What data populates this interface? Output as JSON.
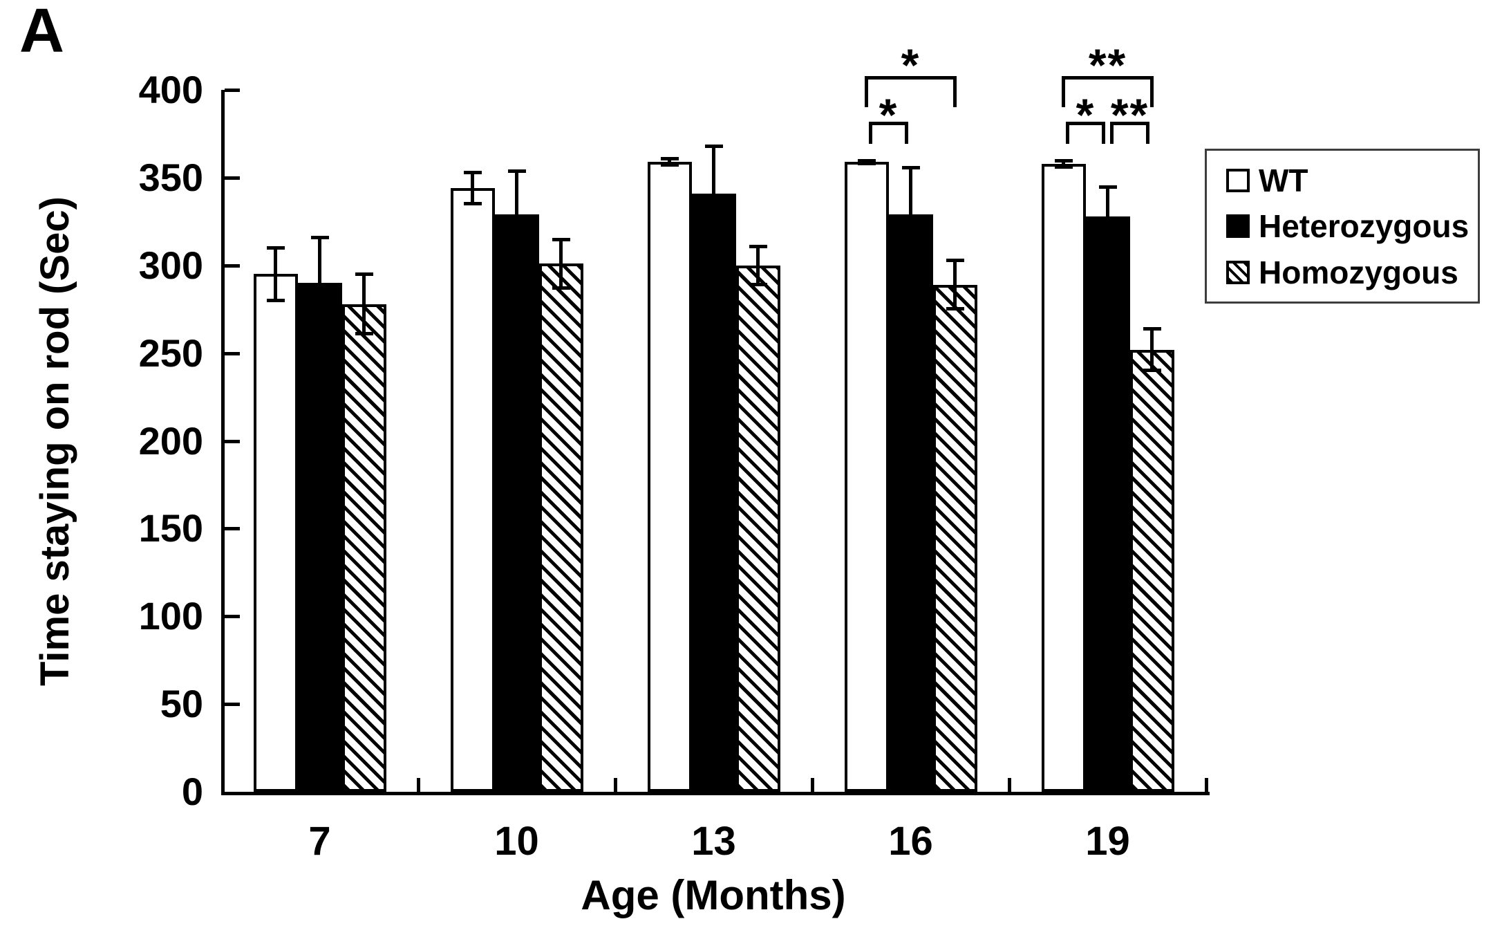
{
  "panel_label": "A",
  "colors": {
    "ink": "#000000",
    "background": "#ffffff",
    "legend_border": "#3d3d3d",
    "bar_open_fill": "#ffffff",
    "bar_solid_fill": "#000000"
  },
  "chart_data": {
    "type": "bar",
    "title": "",
    "xlabel": "Age (Months)",
    "ylabel": "Time staying on rod (Sec)",
    "ylim": [
      0,
      400
    ],
    "yticks": [
      0,
      50,
      100,
      150,
      200,
      250,
      300,
      350,
      400
    ],
    "categories": [
      "7",
      "10",
      "13",
      "16",
      "19"
    ],
    "grid": false,
    "error_bars": true,
    "legend_position": "right",
    "series": [
      {
        "name": "WT",
        "fill": "open",
        "values": [
          295,
          344,
          359,
          359,
          358
        ],
        "errors": [
          15,
          9,
          2,
          1,
          2
        ]
      },
      {
        "name": "Heterozygous",
        "fill": "solid",
        "values": [
          290,
          329,
          341,
          329,
          328
        ],
        "errors": [
          26,
          25,
          27,
          27,
          17
        ]
      },
      {
        "name": "Homozygous",
        "fill": "hatched",
        "values": [
          278,
          301,
          300,
          289,
          252
        ],
        "errors": [
          17,
          14,
          11,
          14,
          12
        ]
      }
    ],
    "significance": [
      {
        "category": "16",
        "between": [
          "WT",
          "Heterozygous"
        ],
        "label": "*",
        "level": "inner"
      },
      {
        "category": "16",
        "between": [
          "WT",
          "Homozygous"
        ],
        "label": "*",
        "level": "outer"
      },
      {
        "category": "19",
        "between": [
          "WT",
          "Heterozygous"
        ],
        "label": "*",
        "level": "inner"
      },
      {
        "category": "19",
        "between": [
          "Heterozygous",
          "Homozygous"
        ],
        "label": "**",
        "level": "inner"
      },
      {
        "category": "19",
        "between": [
          "WT",
          "Homozygous"
        ],
        "label": "**",
        "level": "outer"
      }
    ]
  }
}
